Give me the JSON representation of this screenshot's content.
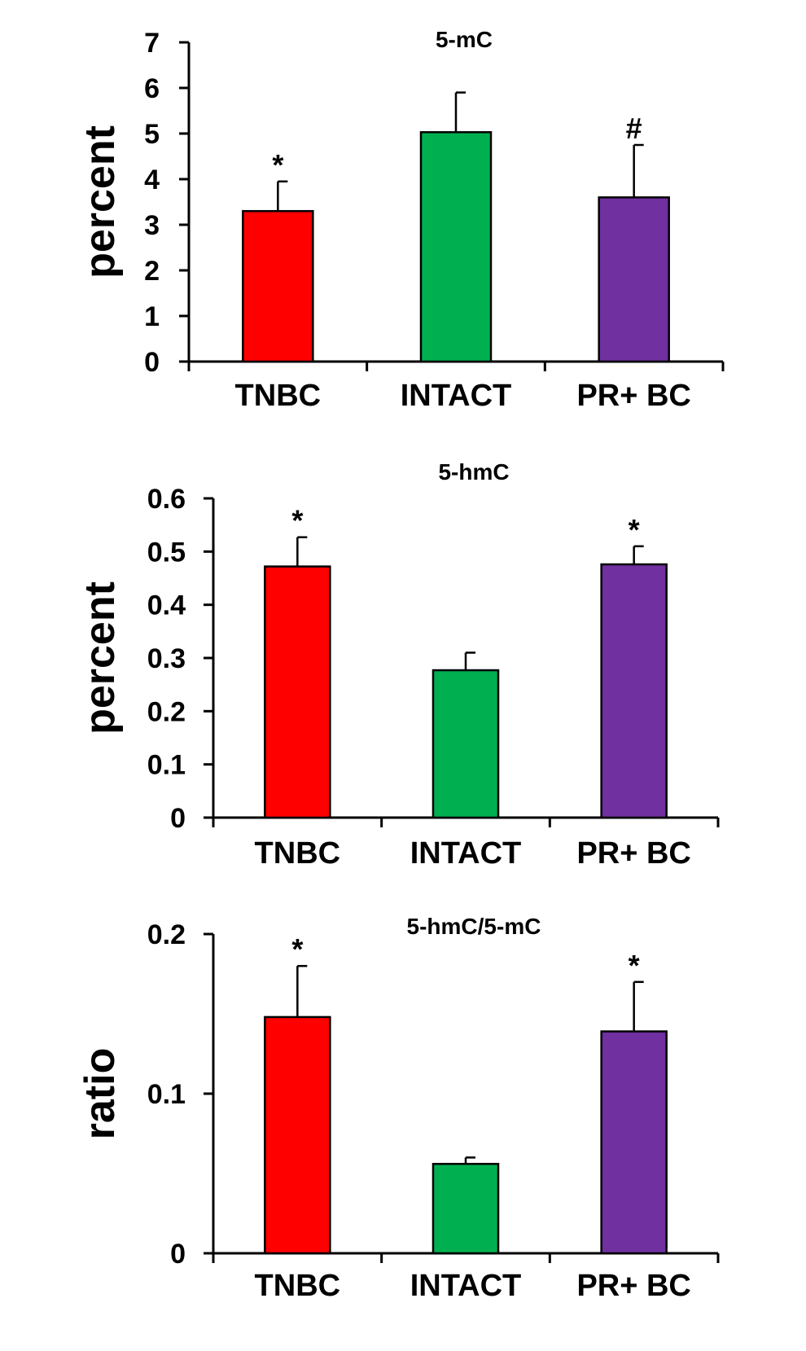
{
  "chart_data": [
    {
      "type": "bar",
      "title": "5-mC",
      "ylabel": "percent",
      "xlabel": "",
      "categories": [
        "TNBC",
        "INTACT",
        "PR+ BC"
      ],
      "values": [
        3.3,
        5.03,
        3.6
      ],
      "errors": [
        0.65,
        0.87,
        1.15
      ],
      "annotations": [
        "*",
        "",
        "#"
      ],
      "colors": [
        "#ff0000",
        "#00b050",
        "#7030a0"
      ],
      "ylim": [
        0,
        7
      ],
      "yticks": [
        "0",
        "1",
        "2",
        "3",
        "4",
        "5",
        "6",
        "7"
      ],
      "ytick_values": [
        0,
        1,
        2,
        3,
        4,
        5,
        6,
        7
      ]
    },
    {
      "type": "bar",
      "title": "5-hmC",
      "ylabel": "percent",
      "xlabel": "",
      "categories": [
        "TNBC",
        "INTACT",
        "PR+ BC"
      ],
      "values": [
        0.472,
        0.277,
        0.476
      ],
      "errors": [
        0.055,
        0.033,
        0.034
      ],
      "annotations": [
        "*",
        "",
        "*"
      ],
      "colors": [
        "#ff0000",
        "#00b050",
        "#7030a0"
      ],
      "ylim": [
        0,
        0.6
      ],
      "yticks": [
        "0",
        "0.1",
        "0.2",
        "0.3",
        "0.4",
        "0.5",
        "0.6"
      ],
      "ytick_values": [
        0,
        0.1,
        0.2,
        0.3,
        0.4,
        0.5,
        0.6
      ]
    },
    {
      "type": "bar",
      "title": "5-hmC/5-mC",
      "ylabel": "ratio",
      "xlabel": "",
      "categories": [
        "TNBC",
        "INTACT",
        "PR+ BC"
      ],
      "values": [
        0.148,
        0.056,
        0.139
      ],
      "errors": [
        0.032,
        0.004,
        0.031
      ],
      "annotations": [
        "*",
        "",
        "*"
      ],
      "colors": [
        "#ff0000",
        "#00b050",
        "#7030a0"
      ],
      "ylim": [
        0,
        0.2
      ],
      "yticks": [
        "0",
        "0.1",
        "0.2"
      ],
      "ytick_values": [
        0,
        0.1,
        0.2
      ]
    }
  ]
}
